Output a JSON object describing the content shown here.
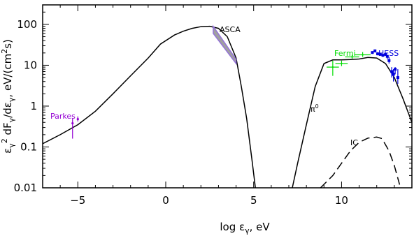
{
  "chart_data": {
    "type": "line",
    "xlabel": "log ε_γ, eV",
    "ylabel": "ε_γ² dF_γ/dε_γ, eV/(cm²s)",
    "xlim": [
      -7,
      14
    ],
    "ylim": [
      0.01,
      300
    ],
    "yscale": "log",
    "grid": false,
    "x_ticks": [
      -5,
      0,
      5,
      10
    ],
    "y_ticks": [
      0.01,
      0.1,
      1,
      10,
      100
    ],
    "y_tick_labels": [
      "0.01",
      "0.1",
      "1",
      "10",
      "100"
    ],
    "annotations": {
      "pi0": "π⁰",
      "ic": "IC"
    },
    "colors": {
      "parkes": "#9400d3",
      "asca": "#9370db",
      "asca_fill": "#a0a0a0",
      "fermi": "#00dd00",
      "hess": "#0000dd"
    },
    "series": [
      {
        "name": "",
        "style": "solid",
        "points": [
          [
            -7,
            0.12
          ],
          [
            -6,
            0.2
          ],
          [
            -5,
            0.35
          ],
          [
            -4,
            0.75
          ],
          [
            -3,
            2
          ],
          [
            -2,
            5.5
          ],
          [
            -1,
            15
          ],
          [
            -0.3,
            33
          ],
          [
            0.5,
            55
          ],
          [
            1,
            68
          ],
          [
            1.5,
            80
          ],
          [
            2,
            88
          ],
          [
            2.5,
            90
          ],
          [
            3,
            80
          ],
          [
            3.5,
            50
          ],
          [
            4,
            15
          ],
          [
            4.3,
            3
          ],
          [
            4.6,
            0.5
          ],
          [
            4.9,
            0.05
          ],
          [
            5.1,
            0.01
          ]
        ]
      },
      {
        "name": "π⁰",
        "style": "solid",
        "points": [
          [
            7.2,
            0.01
          ],
          [
            7.5,
            0.04
          ],
          [
            8,
            0.35
          ],
          [
            8.5,
            3
          ],
          [
            9,
            11
          ],
          [
            9.5,
            13.5
          ],
          [
            10,
            13.5
          ],
          [
            10.5,
            13.8
          ],
          [
            11,
            14.2
          ],
          [
            11.5,
            15.5
          ],
          [
            12,
            15
          ],
          [
            12.5,
            11
          ],
          [
            13,
            5
          ],
          [
            13.5,
            1.5
          ],
          [
            14,
            0.4
          ]
        ]
      },
      {
        "name": "IC",
        "style": "dashed",
        "points": [
          [
            8.8,
            0.01
          ],
          [
            9.5,
            0.02
          ],
          [
            10,
            0.04
          ],
          [
            10.5,
            0.08
          ],
          [
            11,
            0.13
          ],
          [
            11.5,
            0.165
          ],
          [
            12,
            0.175
          ],
          [
            12.3,
            0.16
          ],
          [
            12.7,
            0.08
          ],
          [
            13,
            0.035
          ],
          [
            13.3,
            0.012
          ]
        ]
      }
    ],
    "datasets": [
      {
        "name": "Parkes",
        "color": "#9400d3",
        "points": [
          {
            "x": -5.3,
            "y": 0.38,
            "ylo": 0.16,
            "yhi": 0.5
          },
          {
            "x": -5.0,
            "y": 0.48,
            "ylo": 0.42,
            "yhi": 0.56
          }
        ]
      },
      {
        "name": "ASCA",
        "color": "#9370db",
        "band": {
          "x": [
            2.7,
            4.0
          ],
          "upper": [
            90,
            14
          ],
          "lower": [
            60,
            11
          ]
        }
      },
      {
        "name": "Fermi",
        "color": "#00dd00",
        "points": [
          {
            "x": 9.5,
            "y": 9,
            "xerr": 0.35,
            "ylo": 5.5,
            "yhi": 13
          },
          {
            "x": 10.0,
            "y": 11,
            "xerr": 0.35,
            "ylo": 9.5,
            "yhi": 13
          },
          {
            "x": 10.6,
            "y": 16,
            "xerr": 0.4,
            "ylo": 14.5,
            "yhi": 18
          },
          {
            "x": 11.2,
            "y": 18,
            "xerr": 0.45,
            "ylo": 16,
            "yhi": 21
          }
        ]
      },
      {
        "name": "HESS",
        "color": "#0000dd",
        "points": [
          {
            "x": 11.75,
            "y": 20.5,
            "ylo": 19,
            "yhi": 22
          },
          {
            "x": 11.9,
            "y": 22.5,
            "ylo": 20.5,
            "yhi": 24
          },
          {
            "x": 12.05,
            "y": 19,
            "ylo": 17.5,
            "yhi": 21
          },
          {
            "x": 12.2,
            "y": 18.5,
            "ylo": 17,
            "yhi": 20
          },
          {
            "x": 12.35,
            "y": 17.5,
            "ylo": 16,
            "yhi": 19
          },
          {
            "x": 12.5,
            "y": 18.5,
            "ylo": 17,
            "yhi": 20
          },
          {
            "x": 12.6,
            "y": 16.5,
            "ylo": 14,
            "yhi": 18
          },
          {
            "x": 12.7,
            "y": 13,
            "ylo": 11,
            "yhi": 16
          },
          {
            "x": 12.85,
            "y": 7,
            "ylo": 5,
            "yhi": 9
          },
          {
            "x": 12.95,
            "y": 6,
            "ylo": 4,
            "yhi": 8
          },
          {
            "x": 13.05,
            "y": 8,
            "ylo": 6,
            "yhi": 9
          },
          {
            "x": 13.2,
            "y": 5,
            "ylo": 3.5,
            "yhi": 8
          }
        ]
      }
    ]
  }
}
